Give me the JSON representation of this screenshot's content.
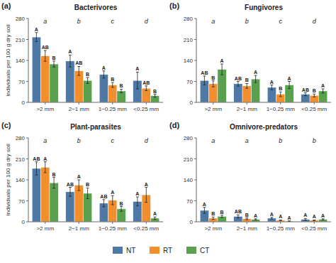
{
  "chart_data": [
    {
      "type": "bar",
      "panel_label": "(a)",
      "title": "Bacterivores",
      "ylabel": "Individuals per 100 g dry soil",
      "categories": [
        ">2 mm",
        "2−1 mm",
        "1−0.25 mm",
        "<0.25 mm"
      ],
      "annotations": [
        "a",
        "b",
        "c",
        "d"
      ],
      "series": [
        {
          "name": "NT",
          "color": "#4e79a7",
          "values": [
            218,
            138,
            93,
            73
          ],
          "errors": [
            15,
            20,
            12,
            28
          ],
          "sig_labels": [
            "A",
            "A",
            "A",
            "A"
          ]
        },
        {
          "name": "RT",
          "color": "#f28e2b",
          "values": [
            155,
            105,
            58,
            47
          ],
          "errors": [
            18,
            15,
            8,
            8
          ],
          "sig_labels": [
            "AB",
            "AB",
            "B",
            "AB"
          ]
        },
        {
          "name": "CT",
          "color": "#59a14f",
          "values": [
            128,
            73,
            38,
            22
          ],
          "errors": [
            10,
            10,
            6,
            5
          ],
          "sig_labels": [
            "B",
            "B",
            "B",
            "B"
          ]
        }
      ],
      "ylim": [
        0,
        280
      ],
      "yticks": [
        0,
        70,
        140,
        210,
        280
      ],
      "grid": false
    },
    {
      "type": "bar",
      "panel_label": "(b)",
      "title": "Fungivores",
      "categories": [
        ">2 mm",
        "2−1 mm",
        "1−0.25 mm",
        "<0.25 mm"
      ],
      "annotations": [
        "a",
        "b",
        "c",
        "d"
      ],
      "series": [
        {
          "name": "NT",
          "color": "#4e79a7",
          "values": [
            73,
            62,
            50,
            27
          ],
          "errors": [
            15,
            8,
            8,
            5
          ],
          "sig_labels": [
            "AB",
            "AB",
            "A",
            "AB"
          ]
        },
        {
          "name": "RT",
          "color": "#f28e2b",
          "values": [
            62,
            55,
            27,
            23
          ],
          "errors": [
            10,
            8,
            8,
            5
          ],
          "sig_labels": [
            "B",
            "B",
            "B",
            "B"
          ]
        },
        {
          "name": "CT",
          "color": "#59a14f",
          "values": [
            110,
            78,
            58,
            38
          ],
          "errors": [
            18,
            12,
            12,
            7
          ],
          "sig_labels": [
            "A",
            "A",
            "A",
            "A"
          ]
        }
      ],
      "ylim": [
        0,
        280
      ],
      "yticks": [
        0,
        70,
        140,
        210,
        280
      ],
      "grid": false
    },
    {
      "type": "bar",
      "panel_label": "(c)",
      "title": "Plant-parasites",
      "ylabel": "Individuals per 100 g dry soil",
      "categories": [
        ">2 mm",
        "2−1 mm",
        "1−0.25 mm",
        "<0.25 mm"
      ],
      "annotations": [
        "a",
        "b",
        "c",
        "d"
      ],
      "series": [
        {
          "name": "NT",
          "color": "#4e79a7",
          "values": [
            178,
            100,
            62,
            68
          ],
          "errors": [
            22,
            15,
            12,
            15
          ],
          "sig_labels": [
            "AB",
            "AB",
            "AB",
            "A"
          ]
        },
        {
          "name": "RT",
          "color": "#f28e2b",
          "values": [
            182,
            122,
            72,
            90
          ],
          "errors": [
            18,
            18,
            15,
            25
          ],
          "sig_labels": [
            "A",
            "A",
            "A",
            "A"
          ]
        },
        {
          "name": "CT",
          "color": "#59a14f",
          "values": [
            130,
            95,
            43,
            12
          ],
          "errors": [
            18,
            18,
            8,
            4
          ],
          "sig_labels": [
            "B",
            "B",
            "B",
            "A"
          ]
        }
      ],
      "ylim": [
        0,
        280
      ],
      "yticks": [
        0,
        70,
        140,
        210,
        280
      ],
      "grid": false
    },
    {
      "type": "bar",
      "panel_label": "(d)",
      "title": "Omnivore-predators",
      "categories": [
        ">2 mm",
        "2−1 mm",
        "1−0.25 mm",
        "<0.25 mm"
      ],
      "annotations": [
        "a",
        "a",
        "b",
        "b"
      ],
      "series": [
        {
          "name": "NT",
          "color": "#4e79a7",
          "values": [
            38,
            18,
            12,
            8
          ],
          "errors": [
            10,
            5,
            3,
            3
          ],
          "sig_labels": [
            "A",
            "AB",
            "A",
            "A"
          ]
        },
        {
          "name": "RT",
          "color": "#f28e2b",
          "values": [
            12,
            10,
            5,
            5
          ],
          "errors": [
            4,
            3,
            1,
            1
          ],
          "sig_labels": [
            "B",
            "B",
            "A",
            "A"
          ]
        },
        {
          "name": "CT",
          "color": "#59a14f",
          "values": [
            18,
            8,
            2,
            8
          ],
          "errors": [
            4,
            2,
            1,
            2
          ],
          "sig_labels": [
            "B",
            "A",
            "A",
            "A"
          ]
        }
      ],
      "ylim": [
        0,
        280
      ],
      "yticks": [
        0,
        70,
        140,
        210,
        280
      ],
      "grid": false
    }
  ]
}
